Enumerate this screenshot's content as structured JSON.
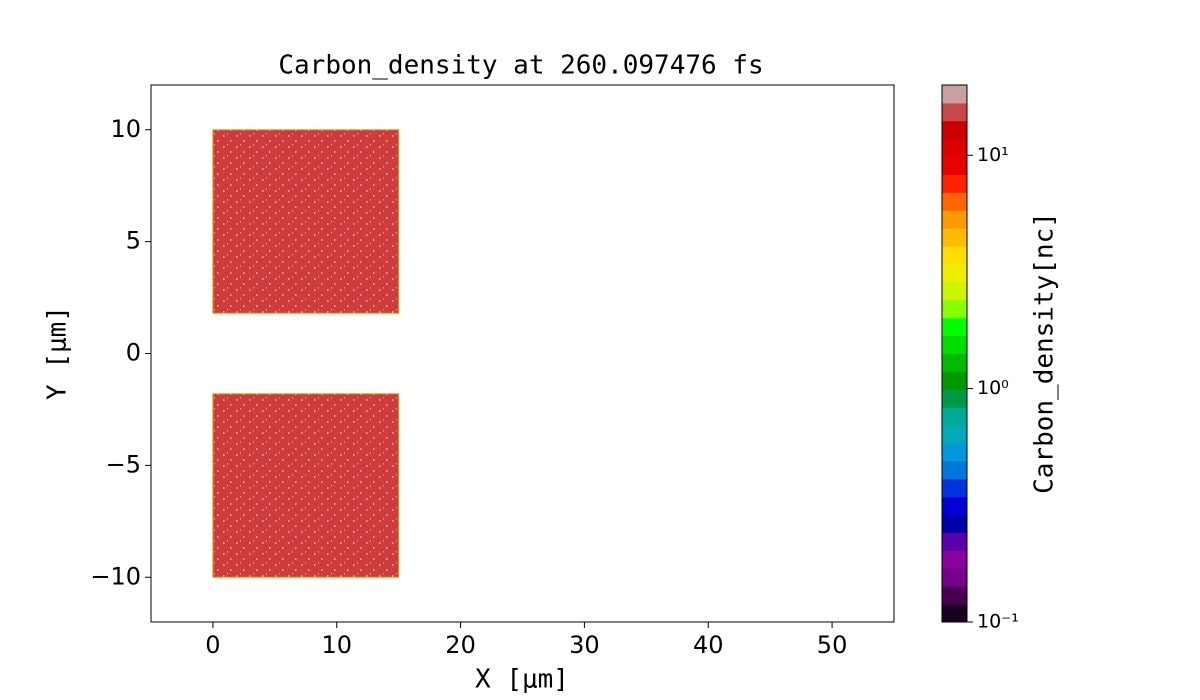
{
  "chart_data": {
    "type": "density",
    "title": "Carbon_density at 260.097476 fs",
    "x_label": "X [μm]",
    "y_label": "Y [μm]",
    "xlim": [
      -5,
      55
    ],
    "ylim": [
      -12,
      12
    ],
    "xticks": [
      0,
      10,
      20,
      30,
      40,
      50
    ],
    "yticks": [
      {
        "value": -10,
        "label": "−10"
      },
      {
        "value": -5,
        "label": "−5"
      },
      0,
      5,
      10
    ],
    "regions": [
      {
        "x": [
          0,
          15
        ],
        "y": [
          1.8,
          10
        ],
        "value": 17
      },
      {
        "x": [
          0,
          15
        ],
        "y": [
          -10,
          -1.8
        ],
        "value": 17
      }
    ],
    "region_color": "#cf3b3b",
    "colorbar": {
      "label": "Carbon_density[nc]",
      "scale": "log",
      "lim": [
        0.1,
        20
      ],
      "ticks": [
        {
          "value": 0.1,
          "label": "10⁻¹"
        },
        {
          "value": 1,
          "label": "10⁰"
        },
        {
          "value": 10,
          "label": "10¹"
        }
      ],
      "colors": [
        "#1a0020",
        "#4a0050",
        "#77008a",
        "#8800a0",
        "#5a00a8",
        "#0000aa",
        "#0000d4",
        "#0033dd",
        "#0077dd",
        "#0099dd",
        "#00aabb",
        "#00aa99",
        "#009944",
        "#009900",
        "#00bb00",
        "#00dd00",
        "#00ff00",
        "#88ff00",
        "#ccf500",
        "#eeee00",
        "#ffdd00",
        "#ffbb00",
        "#ff9900",
        "#ff6600",
        "#ff2200",
        "#e80000",
        "#dd0000",
        "#cc0000",
        "#c84848",
        "#c8a0a0"
      ]
    }
  }
}
